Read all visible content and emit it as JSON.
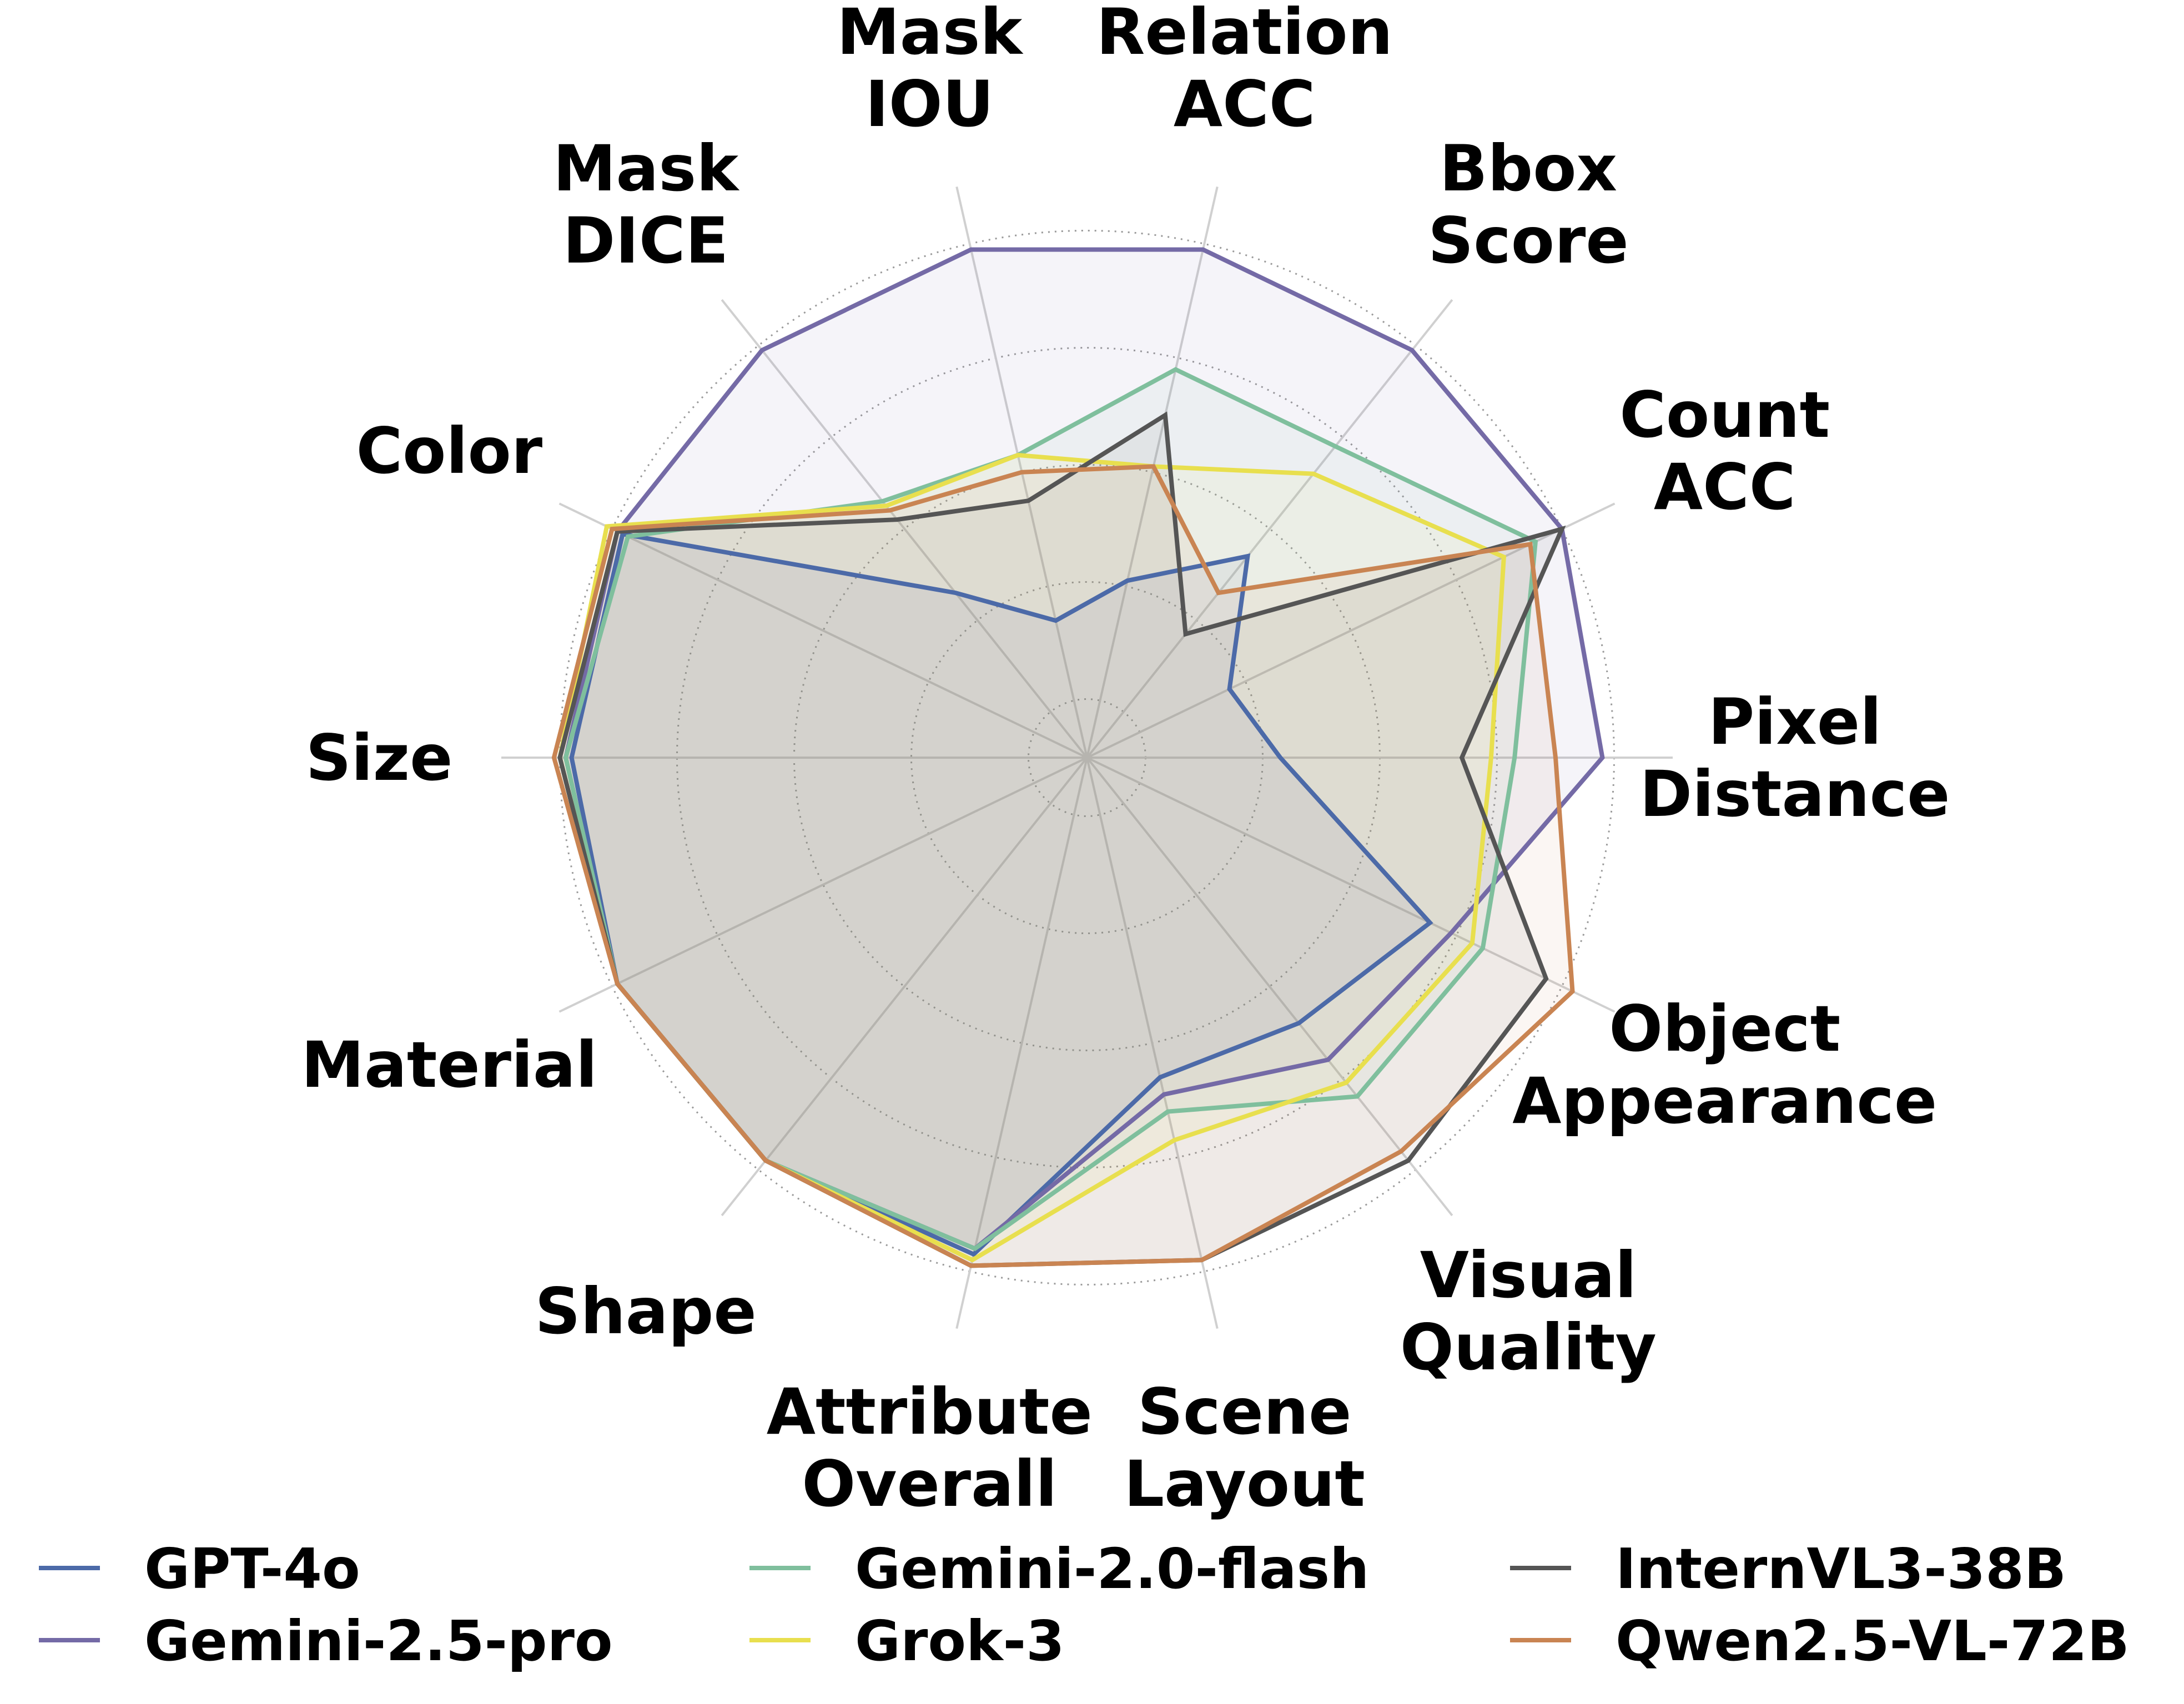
{
  "chart_data": {
    "type": "radar",
    "axes": [
      "Pixel Distance",
      "Count ACC",
      "Bbox Score",
      "Relation ACC",
      "Mask IOU",
      "Mask DICE",
      "Color",
      "Size",
      "Material",
      "Shape",
      "Attribute Overall",
      "Scene Layout",
      "Visual Quality",
      "Object Appearance"
    ],
    "axis_labels": [
      [
        "Pixel",
        "Distance"
      ],
      [
        "Count",
        "ACC"
      ],
      [
        "Bbox",
        "Score"
      ],
      [
        "Relation",
        "ACC"
      ],
      [
        "Mask",
        "IOU"
      ],
      [
        "Mask",
        "DICE"
      ],
      [
        "Color"
      ],
      [
        "Size"
      ],
      [
        "Material"
      ],
      [
        "Shape"
      ],
      [
        "Attribute",
        "Overall"
      ],
      [
        "Scene",
        "Layout"
      ],
      [
        "Visual",
        "Quality"
      ],
      [
        "Object",
        "Appearance"
      ]
    ],
    "rlim": [
      0,
      1
    ],
    "grid_rings": [
      0.1,
      0.3,
      0.5,
      0.7,
      0.9
    ],
    "grid": true,
    "legend_position": "bottom",
    "series": [
      {
        "name": "GPT-4o",
        "color": "#4c6aa8",
        "values": [
          0.33,
          0.27,
          0.44,
          0.31,
          0.24,
          0.36,
          0.88,
          0.88,
          0.89,
          0.88,
          0.87,
          0.56,
          0.58,
          0.65
        ]
      },
      {
        "name": "Gemini-2.5-pro",
        "color": "#746aa6",
        "values": [
          0.88,
          0.9,
          0.89,
          0.89,
          0.89,
          0.89,
          0.89,
          0.89,
          0.89,
          0.88,
          0.86,
          0.59,
          0.66,
          0.69
        ]
      },
      {
        "name": "Gemini-2.0-flash",
        "color": "#7fbf9d",
        "values": [
          0.73,
          0.85,
          0.68,
          0.68,
          0.53,
          0.56,
          0.87,
          0.89,
          0.89,
          0.88,
          0.86,
          0.62,
          0.74,
          0.75
        ]
      },
      {
        "name": "Grok-3",
        "color": "#e8df4e",
        "values": [
          0.69,
          0.79,
          0.62,
          0.51,
          0.53,
          0.55,
          0.91,
          0.9,
          0.89,
          0.88,
          0.88,
          0.67,
          0.71,
          0.73
        ]
      },
      {
        "name": "InternVL3-38B",
        "color": "#555555",
        "values": [
          0.64,
          0.9,
          0.27,
          0.6,
          0.45,
          0.52,
          0.89,
          0.9,
          0.89,
          0.88,
          0.89,
          0.88,
          0.88,
          0.87
        ]
      },
      {
        "name": "Qwen2.5-VL-72B",
        "color": "#c98452",
        "values": [
          0.8,
          0.84,
          0.36,
          0.51,
          0.5,
          0.54,
          0.9,
          0.91,
          0.89,
          0.88,
          0.89,
          0.88,
          0.86,
          0.92
        ]
      }
    ]
  }
}
